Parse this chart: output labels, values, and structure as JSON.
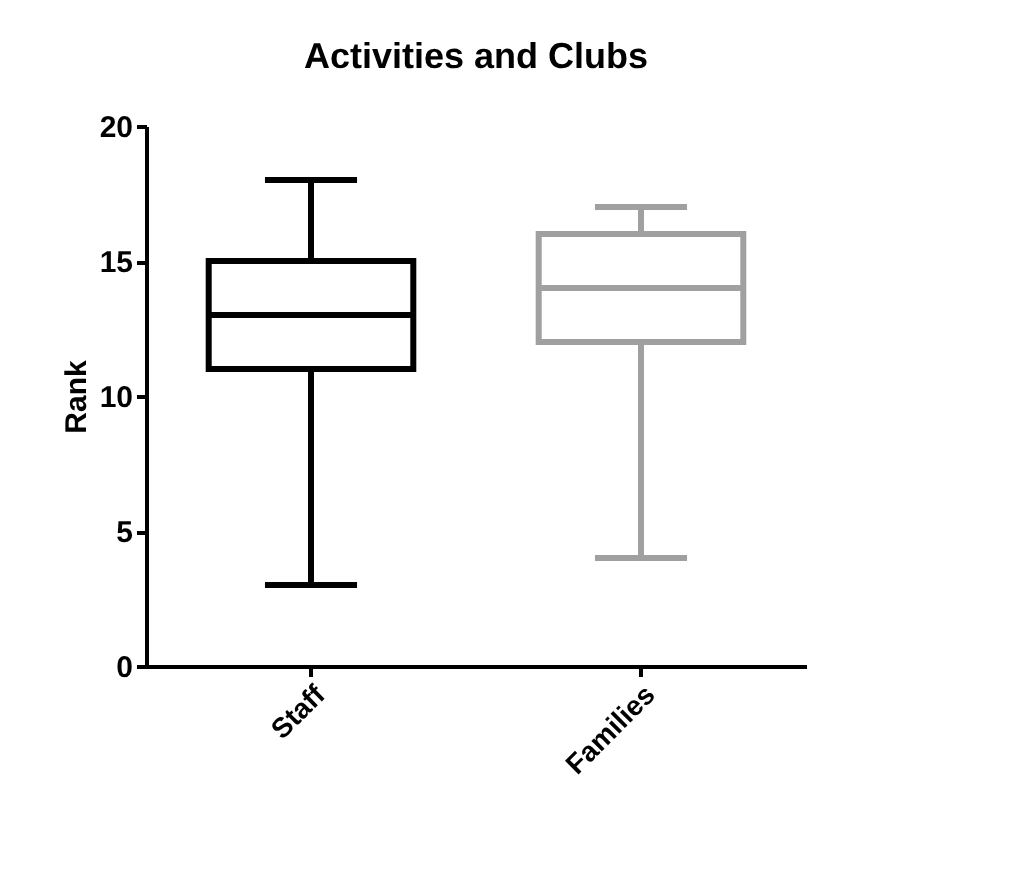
{
  "chart_data": {
    "type": "box",
    "title": "Activities and Clubs",
    "ylabel": "Rank",
    "categories": [
      "Staff",
      "Families"
    ],
    "colors": [
      "#000000",
      "#a0a0a0"
    ],
    "boxes": [
      {
        "low": 3,
        "q1": 11,
        "median": 13,
        "q3": 15,
        "high": 18
      },
      {
        "low": 4,
        "q1": 12,
        "median": 14,
        "q3": 16,
        "high": 17
      }
    ],
    "ylim": [
      0,
      20
    ],
    "yticks": [
      0,
      5,
      10,
      15,
      20
    ],
    "grid": false
  }
}
